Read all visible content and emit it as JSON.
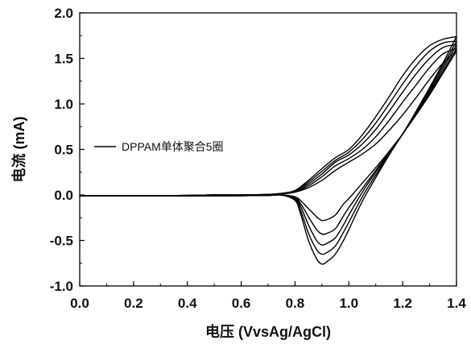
{
  "chart_data": {
    "type": "line",
    "title": "",
    "xlabel": "电压 (VvsAg/AgCl)",
    "ylabel": "电流 (mA)",
    "xlim": [
      0.0,
      1.4
    ],
    "ylim": [
      -1.0,
      2.0
    ],
    "xticks": [
      "0.0",
      "0.2",
      "0.4",
      "0.6",
      "0.8",
      "1.0",
      "1.2",
      "1.4"
    ],
    "yticks": [
      "-1.0",
      "-0.5",
      "0.0",
      "0.5",
      "1.0",
      "1.5",
      "2.0"
    ],
    "grid": false,
    "legend": {
      "position": "middle-left",
      "entries": [
        "DPPAM单体聚合5圈"
      ]
    },
    "line_color": "#000000",
    "series": [
      {
        "name": "DPPAM单体聚合5圈",
        "cycles": [
          {
            "forward": [
              [
                0.0,
                -0.01
              ],
              [
                0.1,
                -0.01
              ],
              [
                0.2,
                -0.01
              ],
              [
                0.3,
                -0.008
              ],
              [
                0.4,
                -0.005
              ],
              [
                0.5,
                0.0
              ],
              [
                0.6,
                0.0
              ],
              [
                0.7,
                0.005
              ],
              [
                0.75,
                0.01
              ],
              [
                0.8,
                0.03
              ],
              [
                0.85,
                0.08
              ],
              [
                0.9,
                0.16
              ],
              [
                0.95,
                0.27
              ],
              [
                1.0,
                0.36
              ],
              [
                1.05,
                0.45
              ],
              [
                1.1,
                0.56
              ],
              [
                1.15,
                0.71
              ],
              [
                1.2,
                0.88
              ],
              [
                1.25,
                1.07
              ],
              [
                1.3,
                1.27
              ],
              [
                1.35,
                1.45
              ],
              [
                1.4,
                1.58
              ]
            ],
            "reverse": [
              [
                1.4,
                1.58
              ],
              [
                1.35,
                1.34
              ],
              [
                1.3,
                1.1
              ],
              [
                1.25,
                0.88
              ],
              [
                1.2,
                0.67
              ],
              [
                1.15,
                0.48
              ],
              [
                1.1,
                0.3
              ],
              [
                1.05,
                0.13
              ],
              [
                1.0,
                -0.04
              ],
              [
                0.98,
                -0.1
              ],
              [
                0.95,
                -0.22
              ],
              [
                0.92,
                -0.27
              ],
              [
                0.9,
                -0.28
              ],
              [
                0.88,
                -0.24
              ],
              [
                0.85,
                -0.15
              ],
              [
                0.82,
                -0.06
              ],
              [
                0.8,
                -0.02
              ],
              [
                0.75,
                0.0
              ],
              [
                0.7,
                -0.005
              ],
              [
                0.6,
                -0.008
              ],
              [
                0.4,
                -0.01
              ],
              [
                0.2,
                -0.01
              ],
              [
                0.0,
                -0.01
              ]
            ]
          },
          {
            "forward": [
              [
                0.0,
                -0.01
              ],
              [
                0.1,
                -0.01
              ],
              [
                0.2,
                -0.01
              ],
              [
                0.3,
                -0.008
              ],
              [
                0.4,
                -0.005
              ],
              [
                0.5,
                0.0
              ],
              [
                0.6,
                0.0
              ],
              [
                0.7,
                0.005
              ],
              [
                0.75,
                0.012
              ],
              [
                0.8,
                0.035
              ],
              [
                0.85,
                0.1
              ],
              [
                0.9,
                0.2
              ],
              [
                0.95,
                0.32
              ],
              [
                1.0,
                0.4
              ],
              [
                1.05,
                0.5
              ],
              [
                1.1,
                0.64
              ],
              [
                1.15,
                0.82
              ],
              [
                1.2,
                1.02
              ],
              [
                1.25,
                1.21
              ],
              [
                1.3,
                1.4
              ],
              [
                1.35,
                1.55
              ],
              [
                1.4,
                1.61
              ]
            ],
            "reverse": [
              [
                1.4,
                1.61
              ],
              [
                1.35,
                1.36
              ],
              [
                1.3,
                1.12
              ],
              [
                1.25,
                0.89
              ],
              [
                1.2,
                0.67
              ],
              [
                1.15,
                0.47
              ],
              [
                1.1,
                0.27
              ],
              [
                1.05,
                0.07
              ],
              [
                1.0,
                -0.14
              ],
              [
                0.98,
                -0.23
              ],
              [
                0.95,
                -0.37
              ],
              [
                0.92,
                -0.42
              ],
              [
                0.9,
                -0.43
              ],
              [
                0.88,
                -0.38
              ],
              [
                0.85,
                -0.24
              ],
              [
                0.82,
                -0.09
              ],
              [
                0.8,
                -0.03
              ],
              [
                0.75,
                0.0
              ],
              [
                0.7,
                -0.005
              ],
              [
                0.6,
                -0.008
              ],
              [
                0.4,
                -0.01
              ],
              [
                0.2,
                -0.01
              ],
              [
                0.0,
                -0.01
              ]
            ]
          },
          {
            "forward": [
              [
                0.0,
                -0.01
              ],
              [
                0.1,
                -0.01
              ],
              [
                0.2,
                -0.01
              ],
              [
                0.3,
                -0.008
              ],
              [
                0.4,
                -0.005
              ],
              [
                0.5,
                0.0
              ],
              [
                0.6,
                0.0
              ],
              [
                0.7,
                0.005
              ],
              [
                0.75,
                0.014
              ],
              [
                0.8,
                0.04
              ],
              [
                0.85,
                0.12
              ],
              [
                0.9,
                0.23
              ],
              [
                0.95,
                0.36
              ],
              [
                1.0,
                0.44
              ],
              [
                1.05,
                0.56
              ],
              [
                1.1,
                0.72
              ],
              [
                1.15,
                0.92
              ],
              [
                1.2,
                1.13
              ],
              [
                1.25,
                1.33
              ],
              [
                1.3,
                1.5
              ],
              [
                1.35,
                1.62
              ],
              [
                1.4,
                1.65
              ]
            ],
            "reverse": [
              [
                1.4,
                1.65
              ],
              [
                1.35,
                1.39
              ],
              [
                1.3,
                1.14
              ],
              [
                1.25,
                0.9
              ],
              [
                1.2,
                0.67
              ],
              [
                1.15,
                0.46
              ],
              [
                1.1,
                0.25
              ],
              [
                1.05,
                0.03
              ],
              [
                1.0,
                -0.22
              ],
              [
                0.98,
                -0.33
              ],
              [
                0.95,
                -0.47
              ],
              [
                0.92,
                -0.53
              ],
              [
                0.9,
                -0.55
              ],
              [
                0.88,
                -0.5
              ],
              [
                0.85,
                -0.33
              ],
              [
                0.82,
                -0.12
              ],
              [
                0.8,
                -0.04
              ],
              [
                0.75,
                0.0
              ],
              [
                0.7,
                -0.005
              ],
              [
                0.6,
                -0.008
              ],
              [
                0.4,
                -0.01
              ],
              [
                0.2,
                -0.01
              ],
              [
                0.0,
                -0.01
              ]
            ]
          },
          {
            "forward": [
              [
                0.0,
                -0.01
              ],
              [
                0.1,
                -0.01
              ],
              [
                0.2,
                -0.01
              ],
              [
                0.3,
                -0.008
              ],
              [
                0.4,
                -0.005
              ],
              [
                0.5,
                0.0
              ],
              [
                0.6,
                0.0
              ],
              [
                0.7,
                0.006
              ],
              [
                0.75,
                0.016
              ],
              [
                0.8,
                0.045
              ],
              [
                0.85,
                0.14
              ],
              [
                0.9,
                0.26
              ],
              [
                0.95,
                0.38
              ],
              [
                1.0,
                0.47
              ],
              [
                1.05,
                0.61
              ],
              [
                1.1,
                0.79
              ],
              [
                1.15,
                1.0
              ],
              [
                1.2,
                1.22
              ],
              [
                1.25,
                1.42
              ],
              [
                1.3,
                1.58
              ],
              [
                1.35,
                1.67
              ],
              [
                1.4,
                1.69
              ]
            ],
            "reverse": [
              [
                1.4,
                1.69
              ],
              [
                1.35,
                1.42
              ],
              [
                1.3,
                1.16
              ],
              [
                1.25,
                0.91
              ],
              [
                1.2,
                0.67
              ],
              [
                1.15,
                0.45
              ],
              [
                1.1,
                0.22
              ],
              [
                1.05,
                -0.02
              ],
              [
                1.0,
                -0.3
              ],
              [
                0.98,
                -0.41
              ],
              [
                0.95,
                -0.56
              ],
              [
                0.92,
                -0.63
              ],
              [
                0.9,
                -0.65
              ],
              [
                0.88,
                -0.6
              ],
              [
                0.85,
                -0.42
              ],
              [
                0.82,
                -0.16
              ],
              [
                0.8,
                -0.05
              ],
              [
                0.75,
                0.0
              ],
              [
                0.7,
                -0.005
              ],
              [
                0.6,
                -0.008
              ],
              [
                0.4,
                -0.01
              ],
              [
                0.2,
                -0.01
              ],
              [
                0.0,
                -0.01
              ]
            ]
          },
          {
            "forward": [
              [
                0.0,
                -0.01
              ],
              [
                0.1,
                -0.01
              ],
              [
                0.2,
                -0.01
              ],
              [
                0.3,
                -0.008
              ],
              [
                0.4,
                -0.005
              ],
              [
                0.5,
                0.0
              ],
              [
                0.6,
                0.0
              ],
              [
                0.7,
                0.006
              ],
              [
                0.75,
                0.018
              ],
              [
                0.8,
                0.05
              ],
              [
                0.85,
                0.16
              ],
              [
                0.9,
                0.29
              ],
              [
                0.95,
                0.41
              ],
              [
                1.0,
                0.5
              ],
              [
                1.05,
                0.66
              ],
              [
                1.1,
                0.86
              ],
              [
                1.15,
                1.08
              ],
              [
                1.2,
                1.31
              ],
              [
                1.25,
                1.5
              ],
              [
                1.3,
                1.64
              ],
              [
                1.35,
                1.71
              ],
              [
                1.4,
                1.74
              ]
            ],
            "reverse": [
              [
                1.4,
                1.74
              ],
              [
                1.35,
                1.45
              ],
              [
                1.3,
                1.18
              ],
              [
                1.25,
                0.92
              ],
              [
                1.2,
                0.67
              ],
              [
                1.15,
                0.44
              ],
              [
                1.1,
                0.19
              ],
              [
                1.05,
                -0.07
              ],
              [
                1.0,
                -0.38
              ],
              [
                0.98,
                -0.5
              ],
              [
                0.95,
                -0.65
              ],
              [
                0.92,
                -0.73
              ],
              [
                0.9,
                -0.76
              ],
              [
                0.88,
                -0.7
              ],
              [
                0.85,
                -0.5
              ],
              [
                0.82,
                -0.2
              ],
              [
                0.8,
                -0.06
              ],
              [
                0.75,
                0.0
              ],
              [
                0.7,
                -0.005
              ],
              [
                0.6,
                -0.008
              ],
              [
                0.4,
                -0.01
              ],
              [
                0.2,
                -0.01
              ],
              [
                0.0,
                -0.01
              ]
            ]
          }
        ]
      }
    ]
  }
}
